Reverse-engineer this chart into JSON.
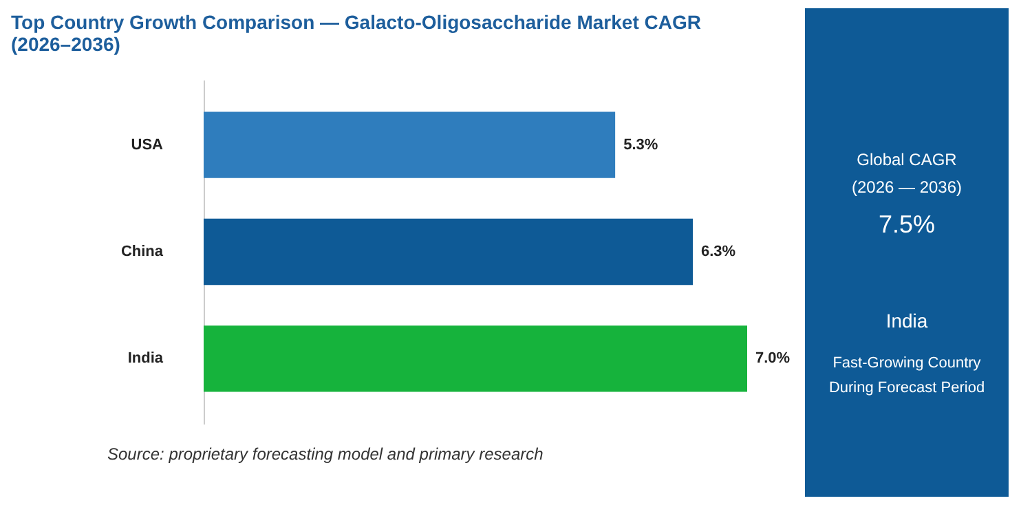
{
  "chart_data": [
    {
      "type": "bar",
      "orientation": "horizontal",
      "title": "Top Country Growth Comparison — Galacto-Oligosaccharide Market CAGR (2026–2036)",
      "categories": [
        "USA",
        "China",
        "India"
      ],
      "values": [
        5.3,
        6.3,
        7.0
      ],
      "colors": [
        "#2f7dbd",
        "#0e5a96",
        "#16b33c"
      ],
      "value_labels": [
        "5.3%",
        "6.3%",
        "7.0%"
      ],
      "tick_labels": "y",
      "annotations": [
        "Source: proprietary forecasting model and primary research"
      ]
    },
    {
      "type": "other",
      "annotations": [
        "Global CAGR",
        "(2026 — 2036)",
        "7.5%",
        "India",
        "Fast-Growing Country",
        "During Forecast Period"
      ]
    }
  ]
}
